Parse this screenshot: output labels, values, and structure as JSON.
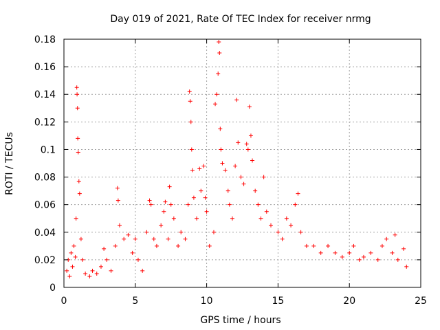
{
  "chart_data": {
    "type": "scatter",
    "title": "Day 019 of 2021, Rate Of TEC Index for receiver nrmg",
    "xlabel": "GPS time / hours",
    "ylabel": "ROTI / TECUs",
    "xlim": [
      0,
      25
    ],
    "ylim": [
      0,
      0.18
    ],
    "grid": true,
    "marker": "+",
    "color": "#ff0000",
    "x_ticks": [
      0,
      5,
      10,
      15,
      20,
      25
    ],
    "x_tick_labels": [
      "0",
      "5",
      "10",
      "15",
      "20",
      "25"
    ],
    "y_ticks": [
      0,
      0.02,
      0.04,
      0.06,
      0.08,
      0.1,
      0.12,
      0.14,
      0.16,
      0.18
    ],
    "y_tick_labels": [
      "0",
      "0.02",
      "0.04",
      "0.06",
      "0.08",
      "0.1",
      "0.12",
      "0.14",
      "0.16",
      "0.18"
    ],
    "series": [
      {
        "name": "ROTI",
        "points": [
          [
            0.2,
            0.012
          ],
          [
            0.3,
            0.02
          ],
          [
            0.4,
            0.008
          ],
          [
            0.5,
            0.025
          ],
          [
            0.6,
            0.015
          ],
          [
            0.7,
            0.03
          ],
          [
            0.8,
            0.022
          ],
          [
            0.85,
            0.05
          ],
          [
            0.9,
            0.145
          ],
          [
            0.92,
            0.14
          ],
          [
            0.95,
            0.13
          ],
          [
            0.97,
            0.108
          ],
          [
            1.0,
            0.098
          ],
          [
            1.05,
            0.077
          ],
          [
            1.1,
            0.068
          ],
          [
            1.2,
            0.035
          ],
          [
            1.3,
            0.02
          ],
          [
            1.5,
            0.01
          ],
          [
            1.8,
            0.008
          ],
          [
            2.0,
            0.012
          ],
          [
            2.3,
            0.01
          ],
          [
            2.6,
            0.015
          ],
          [
            2.8,
            0.028
          ],
          [
            3.0,
            0.02
          ],
          [
            3.3,
            0.012
          ],
          [
            3.6,
            0.03
          ],
          [
            3.75,
            0.072
          ],
          [
            3.8,
            0.063
          ],
          [
            3.9,
            0.045
          ],
          [
            4.2,
            0.035
          ],
          [
            4.5,
            0.038
          ],
          [
            4.8,
            0.025
          ],
          [
            5.0,
            0.035
          ],
          [
            5.2,
            0.02
          ],
          [
            5.5,
            0.012
          ],
          [
            5.8,
            0.04
          ],
          [
            6.0,
            0.063
          ],
          [
            6.1,
            0.06
          ],
          [
            6.3,
            0.035
          ],
          [
            6.5,
            0.03
          ],
          [
            6.8,
            0.045
          ],
          [
            7.0,
            0.055
          ],
          [
            7.1,
            0.062
          ],
          [
            7.3,
            0.035
          ],
          [
            7.4,
            0.073
          ],
          [
            7.5,
            0.06
          ],
          [
            7.7,
            0.05
          ],
          [
            8.0,
            0.03
          ],
          [
            8.2,
            0.04
          ],
          [
            8.5,
            0.035
          ],
          [
            8.7,
            0.06
          ],
          [
            8.8,
            0.142
          ],
          [
            8.85,
            0.135
          ],
          [
            8.9,
            0.12
          ],
          [
            8.95,
            0.1
          ],
          [
            9.0,
            0.085
          ],
          [
            9.1,
            0.065
          ],
          [
            9.3,
            0.05
          ],
          [
            9.5,
            0.086
          ],
          [
            9.6,
            0.07
          ],
          [
            9.8,
            0.088
          ],
          [
            9.9,
            0.065
          ],
          [
            10.0,
            0.055
          ],
          [
            10.2,
            0.03
          ],
          [
            10.5,
            0.04
          ],
          [
            10.6,
            0.133
          ],
          [
            10.7,
            0.14
          ],
          [
            10.8,
            0.155
          ],
          [
            10.85,
            0.178
          ],
          [
            10.9,
            0.17
          ],
          [
            10.95,
            0.115
          ],
          [
            11.0,
            0.1
          ],
          [
            11.1,
            0.09
          ],
          [
            11.3,
            0.085
          ],
          [
            11.5,
            0.07
          ],
          [
            11.6,
            0.06
          ],
          [
            11.8,
            0.05
          ],
          [
            12.0,
            0.088
          ],
          [
            12.1,
            0.136
          ],
          [
            12.2,
            0.105
          ],
          [
            12.4,
            0.08
          ],
          [
            12.6,
            0.075
          ],
          [
            12.8,
            0.104
          ],
          [
            12.9,
            0.1
          ],
          [
            13.0,
            0.131
          ],
          [
            13.1,
            0.11
          ],
          [
            13.2,
            0.092
          ],
          [
            13.4,
            0.07
          ],
          [
            13.6,
            0.06
          ],
          [
            13.8,
            0.05
          ],
          [
            14.0,
            0.08
          ],
          [
            14.2,
            0.055
          ],
          [
            14.5,
            0.045
          ],
          [
            15.0,
            0.04
          ],
          [
            15.3,
            0.035
          ],
          [
            15.6,
            0.05
          ],
          [
            15.9,
            0.045
          ],
          [
            16.2,
            0.06
          ],
          [
            16.4,
            0.068
          ],
          [
            16.6,
            0.04
          ],
          [
            17.0,
            0.03
          ],
          [
            17.5,
            0.03
          ],
          [
            18.0,
            0.025
          ],
          [
            18.5,
            0.03
          ],
          [
            19.0,
            0.025
          ],
          [
            19.5,
            0.022
          ],
          [
            20.0,
            0.025
          ],
          [
            20.3,
            0.03
          ],
          [
            20.7,
            0.02
          ],
          [
            21.0,
            0.022
          ],
          [
            21.5,
            0.025
          ],
          [
            22.0,
            0.02
          ],
          [
            22.3,
            0.03
          ],
          [
            22.6,
            0.035
          ],
          [
            23.0,
            0.025
          ],
          [
            23.2,
            0.038
          ],
          [
            23.4,
            0.02
          ],
          [
            23.8,
            0.028
          ],
          [
            24.0,
            0.015
          ]
        ]
      }
    ]
  }
}
